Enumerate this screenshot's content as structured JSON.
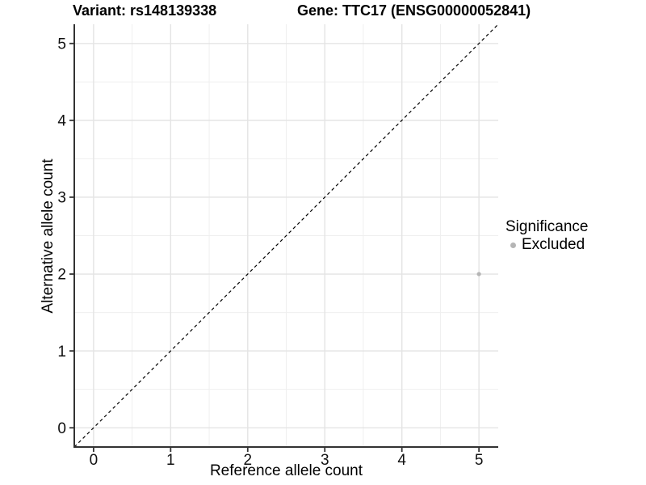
{
  "header": {
    "title_left": "Variant: rs148139338",
    "title_right": "Gene: TTC17 (ENSG00000052841)"
  },
  "legend": {
    "title": "Significance",
    "items": [
      {
        "label": "Excluded",
        "color": "#b5b5b5"
      }
    ]
  },
  "chart_data": {
    "type": "scatter",
    "title": "Variant: rs148139338  /  Gene: TTC17 (ENSG00000052841)",
    "xlabel": "Reference allele count",
    "ylabel": "Alternative allele count",
    "xlim": [
      -0.25,
      5.25
    ],
    "ylim": [
      -0.25,
      5.25
    ],
    "x_ticks": [
      0,
      1,
      2,
      3,
      4,
      5
    ],
    "y_ticks": [
      0,
      1,
      2,
      3,
      4,
      5
    ],
    "grid": true,
    "legend_position": "right",
    "series": [
      {
        "name": "Excluded",
        "color": "#b5b5b5",
        "points": [
          {
            "x": 5,
            "y": 2
          }
        ]
      }
    ],
    "identity_line": {
      "style": "dashed",
      "from": [
        -0.25,
        -0.25
      ],
      "to": [
        5.25,
        5.25
      ],
      "color": "#000000"
    },
    "colors": {
      "point_excluded": "#b5b5b5",
      "grid_major": "#e4e4e4",
      "grid_minor": "#efefef",
      "axis_line": "#333333",
      "tick_text": "#111111"
    }
  }
}
